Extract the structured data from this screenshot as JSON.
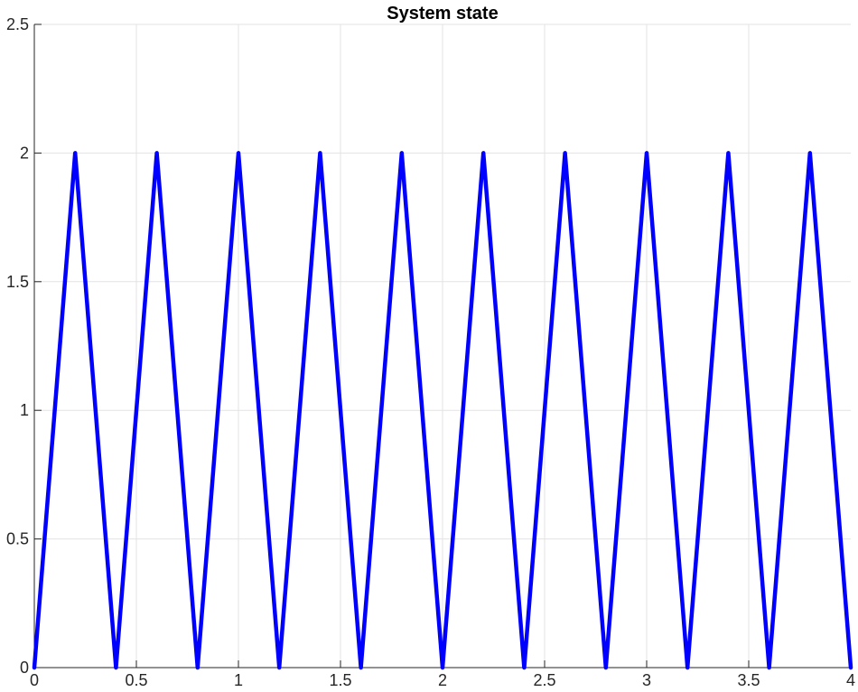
{
  "chart_data": {
    "type": "line",
    "title": "System state",
    "xlabel": "",
    "ylabel": "",
    "xlim": [
      0,
      4
    ],
    "ylim": [
      0,
      2.5
    ],
    "xticks": [
      0,
      0.5,
      1,
      1.5,
      2,
      2.5,
      3,
      3.5,
      4
    ],
    "xtick_labels": [
      "0",
      "0.5",
      "1",
      "1.5",
      "2",
      "2.5",
      "3",
      "3.5",
      "4"
    ],
    "yticks": [
      0,
      0.5,
      1,
      1.5,
      2,
      2.5
    ],
    "ytick_labels": [
      "0",
      "0.5",
      "1",
      "1.5",
      "2",
      "2.5"
    ],
    "grid": true,
    "series": [
      {
        "color": "#0000ff",
        "x": [
          0,
          0.2,
          0.4,
          0.6,
          0.8,
          1.0,
          1.2,
          1.4,
          1.6,
          1.8,
          2.0,
          2.2,
          2.4,
          2.6,
          2.8,
          3.0,
          3.2,
          3.4,
          3.6,
          3.8,
          4.0
        ],
        "y": [
          0,
          2,
          0,
          2,
          0,
          2,
          0,
          2,
          0,
          2,
          0,
          2,
          0,
          2,
          0,
          2,
          0,
          2,
          0,
          2,
          0
        ]
      }
    ]
  }
}
